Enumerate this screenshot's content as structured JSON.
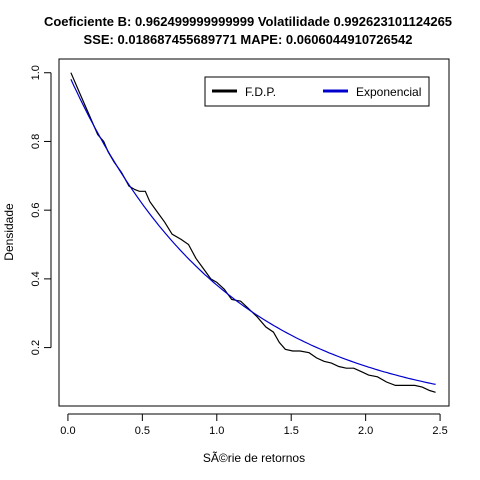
{
  "chart_data": {
    "type": "line",
    "title": "Coeficiente B:  0.962499999999999 Volatilidade 0.992623101124265",
    "subtitle": "SSE: 0.018687455689771 MAPE:  0.0606044910726542",
    "xlabel": "SÃ©rie de retornos",
    "ylabel": "Densidade",
    "xlim": [
      -0.06,
      2.56
    ],
    "ylim": [
      0.03,
      1.04
    ],
    "x_ticks": [
      0.0,
      0.5,
      1.0,
      1.5,
      2.0,
      2.5
    ],
    "x_tick_labels": [
      "0.0",
      "0.5",
      "1.0",
      "1.5",
      "2.0",
      "2.5"
    ],
    "y_ticks": [
      0.2,
      0.4,
      0.6,
      0.8,
      1.0
    ],
    "y_tick_labels": [
      "0.2",
      "0.4",
      "0.6",
      "0.8",
      "1.0"
    ],
    "grid": false,
    "legend_placement": "top-right",
    "series": [
      {
        "name": "F.D.P.",
        "color": "#000000",
        "x": [
          0.02,
          0.08,
          0.14,
          0.2,
          0.24,
          0.27,
          0.31,
          0.36,
          0.41,
          0.45,
          0.48,
          0.52,
          0.55,
          0.6,
          0.65,
          0.7,
          0.76,
          0.81,
          0.86,
          0.91,
          0.96,
          1.0,
          1.05,
          1.1,
          1.16,
          1.21,
          1.27,
          1.33,
          1.38,
          1.42,
          1.46,
          1.51,
          1.56,
          1.62,
          1.67,
          1.72,
          1.77,
          1.82,
          1.87,
          1.92,
          1.97,
          2.02,
          2.08,
          2.14,
          2.2,
          2.27,
          2.33,
          2.38,
          2.43,
          2.47
        ],
        "y": [
          1.0,
          0.94,
          0.88,
          0.82,
          0.8,
          0.77,
          0.74,
          0.71,
          0.67,
          0.66,
          0.655,
          0.655,
          0.625,
          0.595,
          0.565,
          0.53,
          0.515,
          0.5,
          0.46,
          0.43,
          0.4,
          0.39,
          0.37,
          0.34,
          0.335,
          0.315,
          0.29,
          0.26,
          0.245,
          0.215,
          0.195,
          0.19,
          0.19,
          0.185,
          0.17,
          0.16,
          0.155,
          0.145,
          0.14,
          0.14,
          0.13,
          0.12,
          0.115,
          0.1,
          0.09,
          0.09,
          0.09,
          0.085,
          0.075,
          0.07
        ]
      },
      {
        "name": "Exponencial",
        "color": "#0000cc",
        "function": "exp(-0.9625*x)",
        "x_range": [
          0.02,
          2.47
        ]
      }
    ]
  }
}
